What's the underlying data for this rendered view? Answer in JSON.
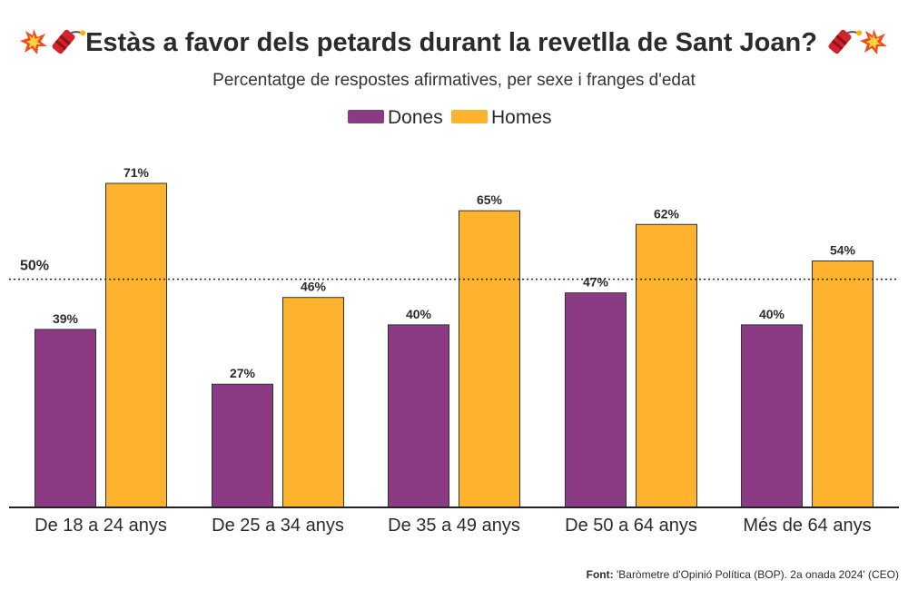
{
  "chart_data": {
    "type": "bar",
    "title": "Estàs a favor dels petards durant la revetlla de Sant Joan?",
    "subtitle": "Percentatge de respostes afirmatives, per sexe i franges d'edat",
    "categories": [
      "De 18 a 24 anys",
      "De 25 a 34 anys",
      "De 35 a 49 anys",
      "De 50 a 64 anys",
      "Més de 64 anys"
    ],
    "series": [
      {
        "name": "Dones",
        "color": "#8B3A84",
        "values": [
          39,
          27,
          40,
          47,
          40
        ]
      },
      {
        "name": "Homes",
        "color": "#FDB32E",
        "values": [
          71,
          46,
          65,
          62,
          54
        ]
      }
    ],
    "value_suffix": "%",
    "ylim": [
      0,
      80
    ],
    "reference_line": {
      "value": 50,
      "label": "50%",
      "style": "dotted"
    },
    "legend_position": "top-center",
    "grid": false,
    "source_label": "Font:",
    "source_text": "'Baròmetre d'Opinió Política (BOP). 2a onada 2024' (CEO)"
  },
  "icons": [
    "explosion-icon",
    "firecracker-icon"
  ]
}
